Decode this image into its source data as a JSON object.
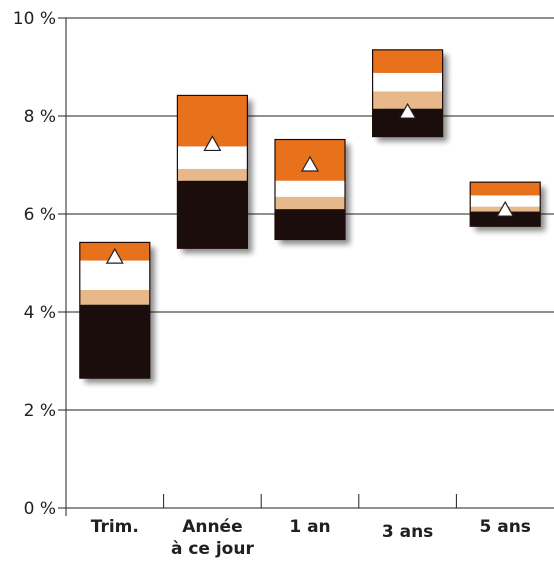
{
  "chart_data": {
    "type": "bar",
    "subtype": "floating-stacked-range",
    "categories": [
      [
        "Trim."
      ],
      [
        "Année",
        "à ce jour"
      ],
      [
        "1 an"
      ],
      [
        "3 ans"
      ],
      [
        "5 ans"
      ]
    ],
    "yticks": [
      "0 %",
      "2 %",
      "4 %",
      "6 %",
      "8 %",
      "10 %"
    ],
    "ylim": [
      0,
      10
    ],
    "grid": true,
    "segment_colors": [
      "#1e0c08",
      "#e6b88a",
      "#ffffff",
      "#e8711f"
    ],
    "bars": [
      {
        "bottom": 2.65,
        "cuts": [
          4.15,
          4.45,
          5.05
        ],
        "top": 5.42,
        "marker": 5.12
      },
      {
        "bottom": 5.3,
        "cuts": [
          6.68,
          6.92,
          7.38
        ],
        "top": 8.42,
        "marker": 7.42
      },
      {
        "bottom": 5.48,
        "cuts": [
          6.1,
          6.35,
          6.68
        ],
        "top": 7.52,
        "marker": 7.0
      },
      {
        "bottom": 7.58,
        "cuts": [
          8.15,
          8.5,
          8.88
        ],
        "top": 9.35,
        "marker": 8.08
      },
      {
        "bottom": 5.75,
        "cuts": [
          6.05,
          6.15,
          6.38
        ],
        "top": 6.65,
        "marker": 6.08
      }
    ],
    "marker_shape": "triangle"
  }
}
